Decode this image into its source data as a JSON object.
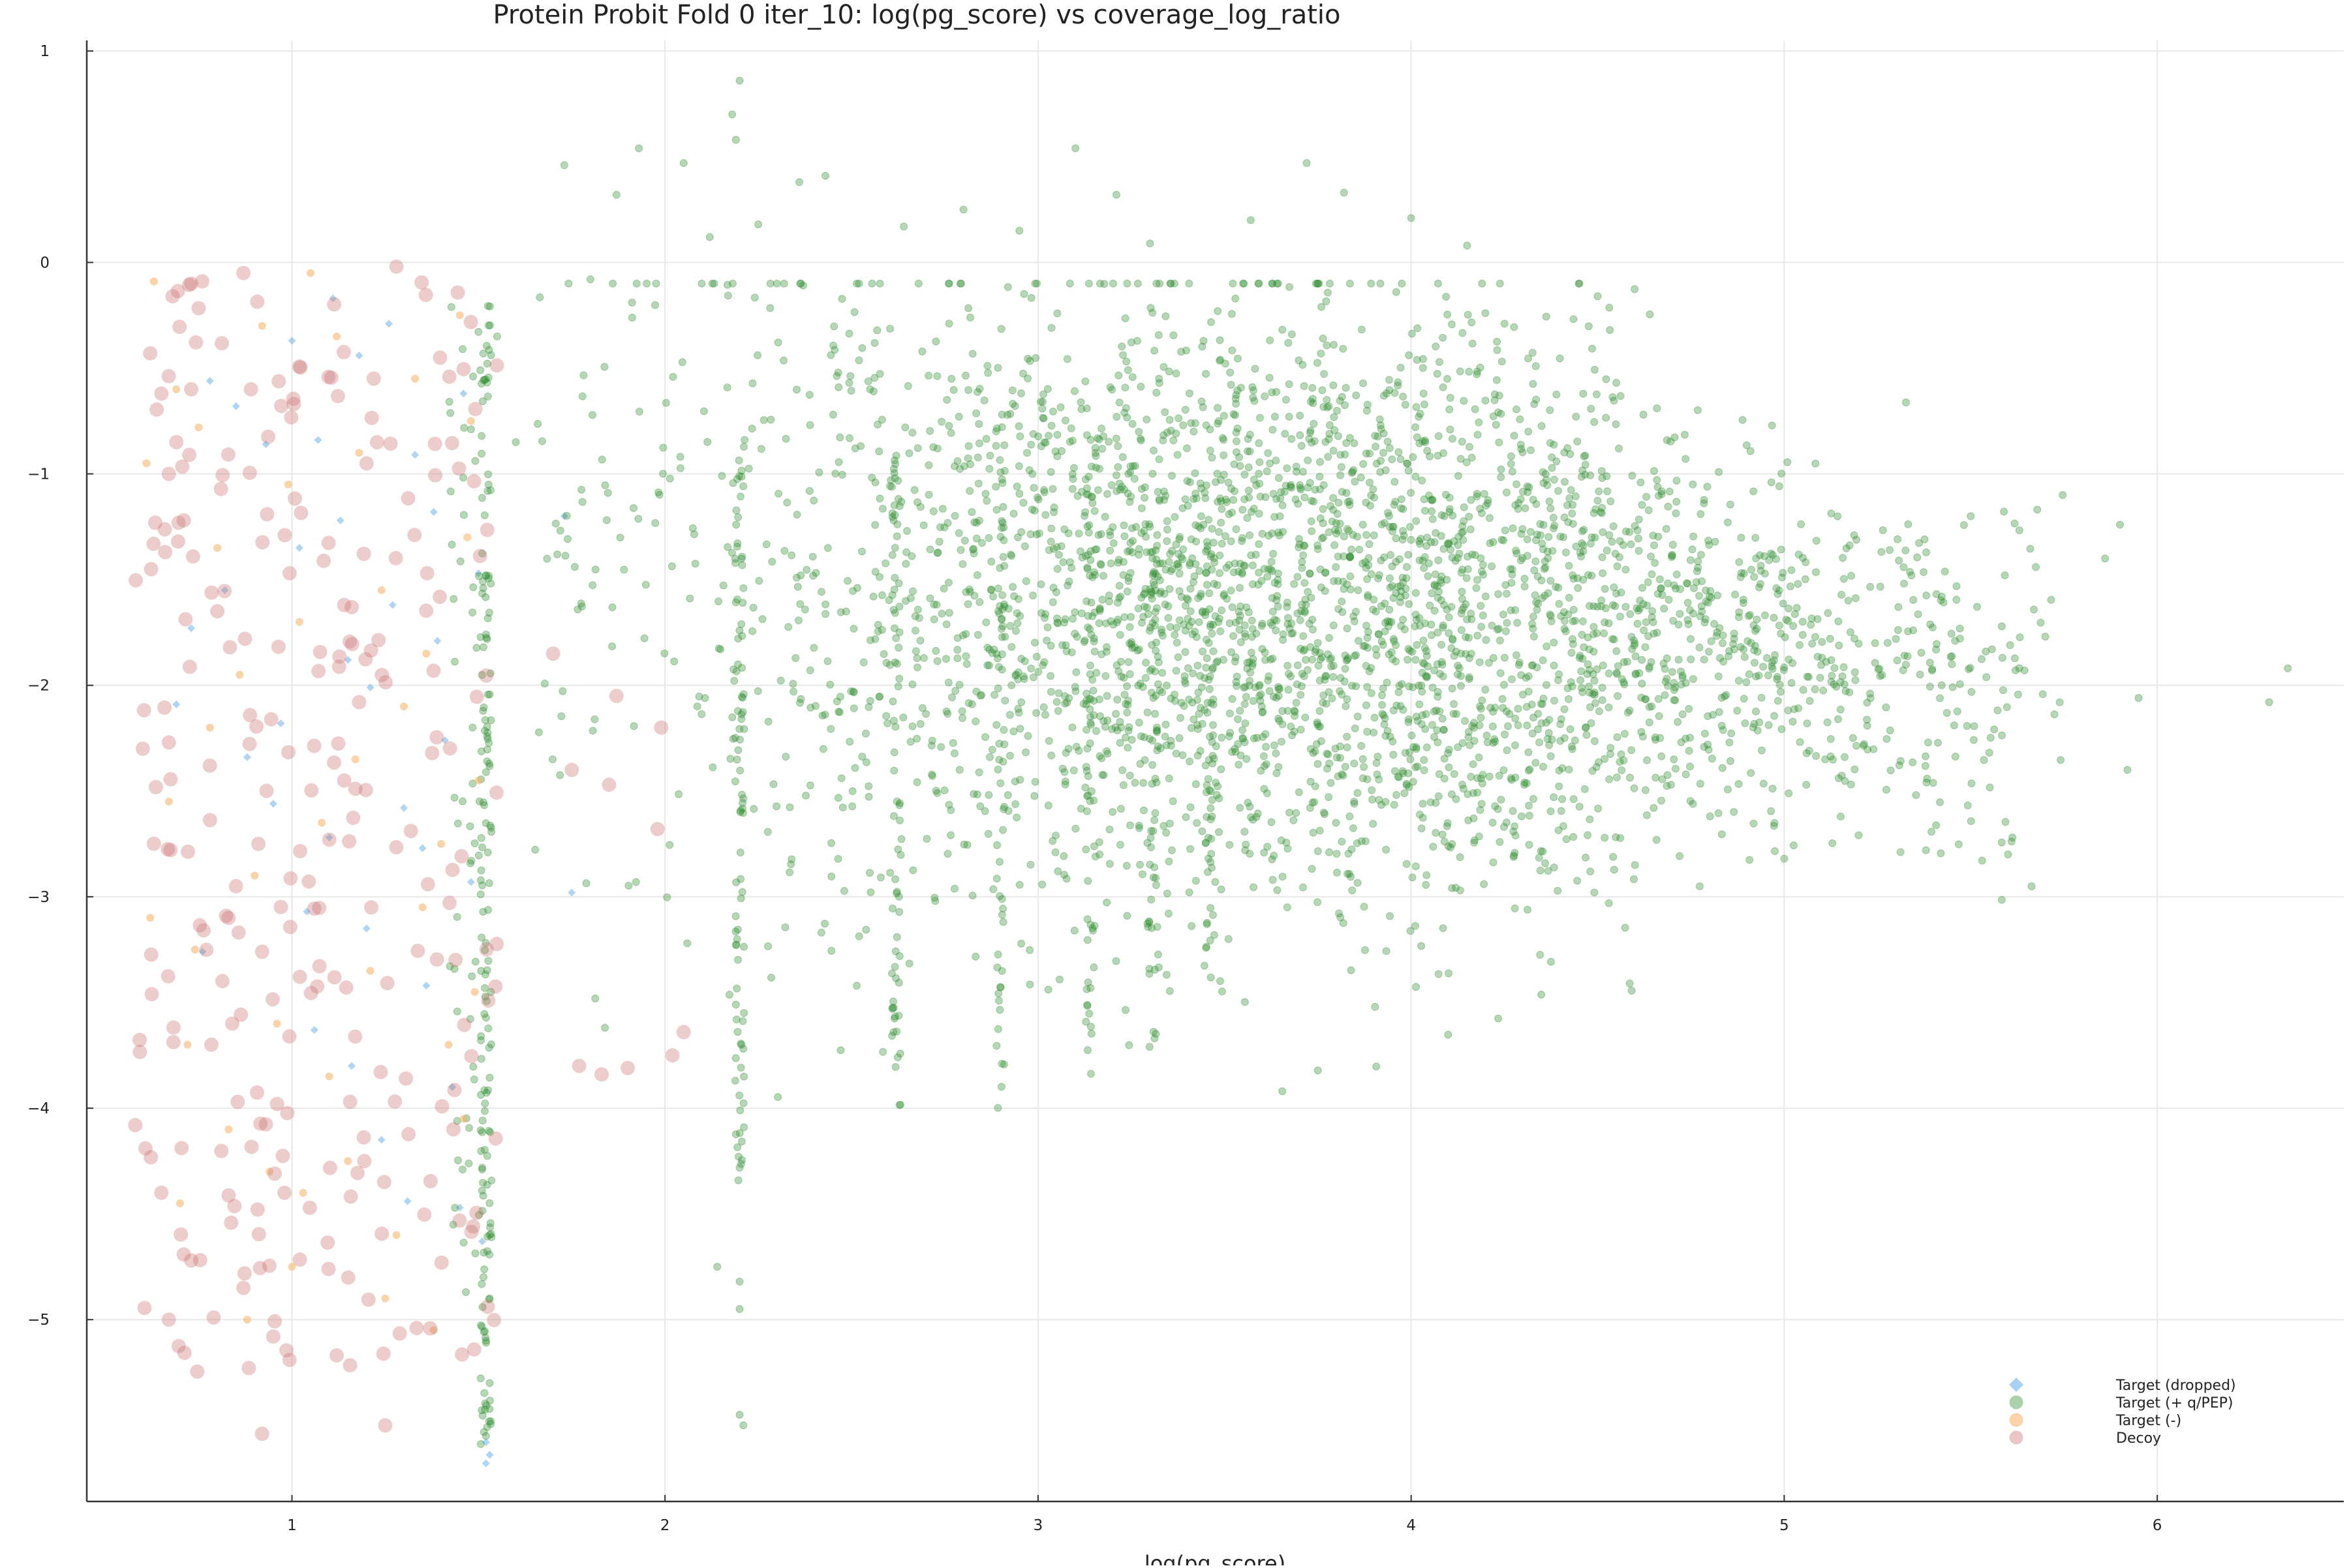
{
  "chart_data": {
    "type": "scatter",
    "title": "Protein Probit Fold 0 iter_10: log(pg_score) vs coverage_log_ratio",
    "xlabel": "log(pg_score)",
    "ylabel": "",
    "xlim": [
      0.45,
      6.5
    ],
    "ylim": [
      -5.86,
      1.05
    ],
    "x_ticks": [
      1,
      2,
      3,
      4,
      5,
      6
    ],
    "y_ticks": [
      1,
      0,
      -1,
      -2,
      -3,
      -4,
      -5
    ],
    "y_tick_labels": [
      "1",
      "0",
      "−1",
      "−2",
      "−3",
      "−4",
      "−5"
    ],
    "grid": true,
    "legend_position": "bottom-right",
    "series": [
      {
        "name": "Target (dropped)",
        "color": "#6fb3ea",
        "marker": "diamond",
        "points": [
          [
            0.73,
            -1.73
          ],
          [
            0.78,
            -0.56
          ],
          [
            0.82,
            -1.55
          ],
          [
            0.88,
            -2.34
          ],
          [
            0.93,
            -0.86
          ],
          [
            0.97,
            -2.18
          ],
          [
            1.02,
            -1.35
          ],
          [
            1.04,
            -3.07
          ],
          [
            1.07,
            -0.84
          ],
          [
            1.1,
            -2.72
          ],
          [
            1.13,
            -1.22
          ],
          [
            1.16,
            -3.8
          ],
          [
            1.18,
            -0.44
          ],
          [
            1.21,
            -2.01
          ],
          [
            1.24,
            -4.15
          ],
          [
            1.27,
            -1.62
          ],
          [
            1.3,
            -2.58
          ],
          [
            1.33,
            -0.91
          ],
          [
            1.36,
            -3.42
          ],
          [
            1.38,
            -1.18
          ],
          [
            1.41,
            -2.26
          ],
          [
            1.43,
            -3.9
          ],
          [
            1.46,
            -0.62
          ],
          [
            1.48,
            -2.93
          ],
          [
            1.5,
            -1.47
          ],
          [
            1.51,
            -4.63
          ],
          [
            1.52,
            -5.58
          ],
          [
            1.53,
            -5.64
          ],
          [
            1.52,
            -5.68
          ],
          [
            1.45,
            -4.47
          ],
          [
            1.35,
            -2.77
          ],
          [
            1.26,
            -0.29
          ],
          [
            1.15,
            -1.88
          ],
          [
            1.06,
            -3.63
          ],
          [
            0.95,
            -2.56
          ],
          [
            0.85,
            -0.68
          ],
          [
            0.76,
            -3.26
          ],
          [
            0.69,
            -2.09
          ],
          [
            1.0,
            -0.37
          ],
          [
            1.2,
            -3.15
          ],
          [
            1.39,
            -1.79
          ],
          [
            1.31,
            -4.44
          ],
          [
            1.11,
            -0.17
          ],
          [
            1.73,
            -1.2
          ],
          [
            1.75,
            -2.98
          ]
        ]
      },
      {
        "name": "Target (+ q/PEP)",
        "color": "#2e8b2e",
        "marker": "circle",
        "points": [
          [
            2.2,
            0.86
          ],
          [
            2.18,
            0.7
          ],
          [
            2.19,
            0.58
          ],
          [
            3.1,
            0.54
          ],
          [
            1.93,
            0.54
          ],
          [
            1.73,
            0.46
          ],
          [
            3.72,
            0.47
          ],
          [
            2.05,
            0.47
          ],
          [
            2.43,
            0.41
          ],
          [
            3.82,
            0.33
          ],
          [
            3.21,
            0.32
          ],
          [
            1.87,
            0.32
          ],
          [
            2.36,
            0.38
          ],
          [
            2.8,
            0.25
          ],
          [
            4.0,
            0.21
          ],
          [
            2.95,
            0.15
          ],
          [
            2.25,
            0.18
          ],
          [
            3.3,
            0.09
          ],
          [
            3.57,
            0.2
          ],
          [
            2.64,
            0.17
          ],
          [
            4.15,
            0.08
          ],
          [
            2.12,
            0.12
          ],
          [
            1.8,
            -0.08
          ],
          [
            4.5,
            -0.16
          ],
          [
            3.96,
            -0.14
          ],
          [
            5.5,
            -1.2
          ],
          [
            5.9,
            -1.24
          ],
          [
            5.86,
            -1.4
          ],
          [
            6.35,
            -1.92
          ],
          [
            6.3,
            -2.08
          ],
          [
            5.95,
            -2.06
          ],
          [
            5.92,
            -2.4
          ],
          [
            5.38,
            -2.78
          ],
          [
            5.6,
            -2.8
          ],
          [
            5.0,
            -2.82
          ],
          [
            4.6,
            -2.85
          ],
          [
            2.2,
            -5.45
          ],
          [
            2.21,
            -5.5
          ],
          [
            2.2,
            -4.82
          ],
          [
            2.2,
            -4.95
          ],
          [
            2.14,
            -4.75
          ],
          [
            1.52,
            -5.1
          ],
          [
            1.53,
            -5.3
          ],
          [
            1.52,
            -5.55
          ],
          [
            1.53,
            -4.9
          ],
          [
            1.6,
            -0.85
          ],
          [
            1.55,
            -0.35
          ]
        ],
        "clusters": [
          {
            "x": 1.52,
            "y_range": [
              -5.6,
              -0.2
            ],
            "n": 150,
            "x_spread": 0.015
          },
          {
            "x": 1.47,
            "y_range": [
              -4.9,
              -0.2
            ],
            "n": 60,
            "x_spread": 0.05
          },
          {
            "x": 2.2,
            "y_range": [
              -4.4,
              -0.9
            ],
            "n": 85,
            "x_spread": 0.012
          },
          {
            "x": 2.62,
            "y_range": [
              -4.0,
              -0.8
            ],
            "n": 60,
            "x_spread": 0.012
          },
          {
            "x": 2.9,
            "y_range": [
              -4.0,
              -0.7
            ],
            "n": 55,
            "x_spread": 0.012
          },
          {
            "x": 3.14,
            "y_range": [
              -3.9,
              -1.0
            ],
            "n": 50,
            "x_spread": 0.012
          },
          {
            "x": 3.31,
            "y_range": [
              -3.8,
              -1.2
            ],
            "n": 45,
            "x_spread": 0.012
          },
          {
            "x": 3.46,
            "y_range": [
              -3.3,
              -1.3
            ],
            "n": 45,
            "x_spread": 0.012
          }
        ],
        "cloud": {
          "x_range": [
            1.65,
            5.75
          ],
          "y_top": -0.1,
          "n": 3600
        }
      },
      {
        "name": "Target (-)",
        "color": "#f5b061",
        "marker": "circle",
        "points": [
          [
            0.63,
            -0.09
          ],
          [
            0.69,
            -0.6
          ],
          [
            0.75,
            -0.78
          ],
          [
            0.61,
            -0.95
          ],
          [
            0.8,
            -1.35
          ],
          [
            0.86,
            -1.95
          ],
          [
            0.67,
            -2.55
          ],
          [
            0.9,
            -2.9
          ],
          [
            0.74,
            -3.25
          ],
          [
            0.96,
            -3.6
          ],
          [
            0.62,
            -3.1
          ],
          [
            0.83,
            -4.1
          ],
          [
            0.7,
            -4.45
          ],
          [
            1.0,
            -4.75
          ],
          [
            0.88,
            -5.0
          ],
          [
            0.94,
            -4.3
          ],
          [
            1.05,
            -0.05
          ],
          [
            1.12,
            -0.35
          ],
          [
            1.18,
            -0.9
          ],
          [
            1.24,
            -1.55
          ],
          [
            1.3,
            -2.1
          ],
          [
            1.08,
            -2.65
          ],
          [
            1.35,
            -3.05
          ],
          [
            1.42,
            -3.7
          ],
          [
            1.15,
            -4.25
          ],
          [
            1.28,
            -4.6
          ],
          [
            1.38,
            -5.05
          ],
          [
            1.45,
            -0.25
          ],
          [
            1.47,
            -1.3
          ],
          [
            1.5,
            -2.45
          ],
          [
            1.49,
            -3.45
          ],
          [
            1.46,
            -4.05
          ],
          [
            0.99,
            -1.05
          ],
          [
            1.21,
            -3.35
          ],
          [
            1.33,
            -0.55
          ],
          [
            0.78,
            -2.2
          ],
          [
            1.02,
            -1.7
          ],
          [
            1.1,
            -3.85
          ],
          [
            1.25,
            -4.9
          ],
          [
            1.4,
            -2.75
          ],
          [
            0.92,
            -0.3
          ],
          [
            0.72,
            -3.7
          ],
          [
            1.17,
            -2.35
          ],
          [
            1.36,
            -1.85
          ],
          [
            1.03,
            -4.4
          ],
          [
            1.48,
            -0.75
          ]
        ]
      },
      {
        "name": "Decoy",
        "color": "#c8706e",
        "marker": "circle",
        "points": [
          [
            1.28,
            -0.02
          ],
          [
            0.73,
            -0.1
          ],
          [
            0.68,
            -0.16
          ],
          [
            0.62,
            -0.43
          ],
          [
            0.65,
            -0.62
          ],
          [
            0.73,
            -0.6
          ],
          [
            0.69,
            -0.85
          ],
          [
            0.67,
            -1.0
          ],
          [
            0.71,
            -1.22
          ],
          [
            0.66,
            -1.37
          ],
          [
            0.6,
            -2.3
          ],
          [
            0.67,
            -2.27
          ],
          [
            0.58,
            -4.08
          ],
          [
            0.65,
            -4.4
          ],
          [
            0.67,
            -5.0
          ],
          [
            0.73,
            -4.72
          ],
          [
            0.79,
            -4.99
          ],
          [
            0.87,
            -4.85
          ],
          [
            0.92,
            -5.54
          ],
          [
            0.95,
            -5.08
          ],
          [
            0.84,
            -3.6
          ],
          [
            0.78,
            -2.38
          ],
          [
            0.8,
            -1.65
          ],
          [
            0.89,
            -0.6
          ],
          [
            0.87,
            -0.05
          ],
          [
            0.91,
            -2.75
          ],
          [
            0.96,
            -3.98
          ],
          [
            0.98,
            -4.4
          ],
          [
            0.92,
            -3.26
          ],
          [
            0.83,
            -3.1
          ],
          [
            0.85,
            -2.95
          ],
          [
            1.14,
            -1.62
          ],
          [
            1.16,
            -1.63
          ],
          [
            1.14,
            -2.45
          ],
          [
            1.2,
            -0.95
          ],
          [
            1.25,
            -5.5
          ],
          [
            1.7,
            -1.85
          ],
          [
            1.77,
            -3.8
          ],
          [
            1.83,
            -3.84
          ],
          [
            1.9,
            -3.81
          ],
          [
            1.87,
            -2.05
          ],
          [
            1.85,
            -2.47
          ],
          [
            1.99,
            -2.2
          ],
          [
            2.02,
            -3.75
          ],
          [
            2.05,
            -3.64
          ],
          [
            1.75,
            -2.4
          ],
          [
            1.98,
            -2.68
          ]
        ],
        "cloud": {
          "x_range": [
            0.58,
            1.55
          ],
          "y_range": [
            -5.25,
            -0.05
          ],
          "n": 240
        }
      }
    ]
  }
}
